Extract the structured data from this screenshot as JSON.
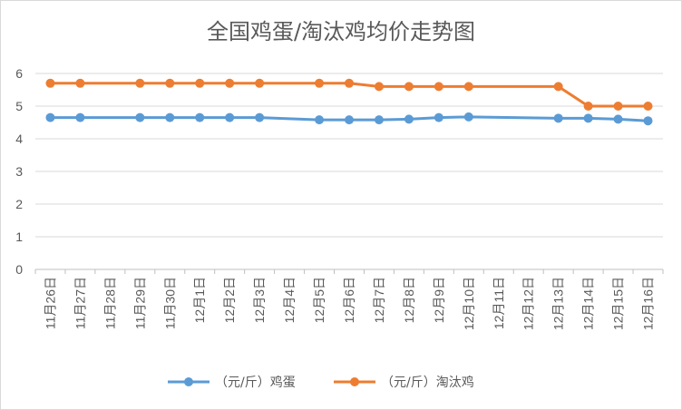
{
  "chart_data": {
    "type": "line",
    "title": "全国鸡蛋/淘汰鸡均价走势图",
    "categories": [
      "11月26日",
      "11月27日",
      "11月28日",
      "11月29日",
      "11月30日",
      "12月1日",
      "12月2日",
      "12月3日",
      "12月4日",
      "12月5日",
      "12月6日",
      "12月7日",
      "12月8日",
      "12月9日",
      "12月10日",
      "12月11日",
      "12月12日",
      "12月13日",
      "12月14日",
      "12月15日",
      "12月16日"
    ],
    "ylim": [
      0,
      6
    ],
    "yticks": [
      0,
      1,
      2,
      3,
      4,
      5,
      6
    ],
    "grid": true,
    "legend_position": "bottom",
    "series": [
      {
        "name": "（元/斤）鸡蛋",
        "color": "#5b9bd5",
        "values": [
          4.65,
          4.65,
          null,
          4.65,
          4.65,
          4.65,
          4.65,
          4.65,
          null,
          4.58,
          4.58,
          4.58,
          4.6,
          4.65,
          4.67,
          null,
          null,
          4.63,
          4.63,
          4.6,
          4.55
        ]
      },
      {
        "name": "（元/斤）淘汰鸡",
        "color": "#ed7d31",
        "values": [
          5.7,
          5.7,
          null,
          5.7,
          5.7,
          5.7,
          5.7,
          5.7,
          null,
          5.7,
          5.7,
          5.6,
          5.6,
          5.6,
          5.6,
          null,
          null,
          5.6,
          5.0,
          5.0,
          5.0
        ]
      }
    ]
  }
}
